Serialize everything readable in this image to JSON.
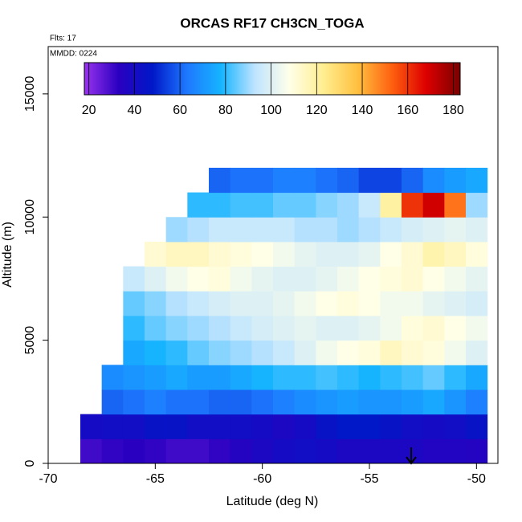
{
  "chart_data": {
    "type": "heatmap",
    "title": "ORCAS RF17 CH3CN_TOGA",
    "annotations": [
      "Flts: 17",
      "MMDD: 0224"
    ],
    "xlabel": "Latitude (deg N)",
    "ylabel": "Altitude (m)",
    "xlim": [
      -70,
      -49
    ],
    "ylim": [
      0,
      16920
    ],
    "xticks": [
      -70,
      -65,
      -60,
      -55,
      -50
    ],
    "yticks": [
      0,
      5000,
      10000,
      15000
    ],
    "clim": [
      18,
      183
    ],
    "cticks": [
      20,
      40,
      60,
      80,
      100,
      120,
      140,
      160,
      180
    ],
    "colormap": [
      "#9933ee",
      "#2a00c0",
      "#0018c8",
      "#1e78ff",
      "#16b4ff",
      "#c0e4ff",
      "#ffffe8",
      "#ffee90",
      "#ffc040",
      "#ff6010",
      "#dd0000",
      "#7a0000"
    ],
    "x": [
      -68,
      -67,
      -66,
      -65,
      -64,
      -63,
      -62,
      -61,
      -60,
      -59,
      -58,
      -57,
      -56,
      -55,
      -54,
      -53,
      -52,
      -51,
      -50
    ],
    "y": [
      500,
      1500,
      2500,
      3500,
      4500,
      5500,
      6500,
      7500,
      8500,
      9500,
      10500,
      11500
    ],
    "values": [
      [
        30,
        32,
        33,
        32,
        30,
        30,
        32,
        35,
        38,
        40,
        42,
        40,
        38,
        38,
        38,
        38,
        36,
        36,
        35
      ],
      [
        40,
        42,
        42,
        45,
        45,
        42,
        42,
        42,
        40,
        38,
        40,
        45,
        48,
        48,
        45,
        42,
        40,
        42,
        45
      ],
      [
        null,
        60,
        62,
        65,
        62,
        62,
        60,
        60,
        62,
        65,
        68,
        70,
        72,
        70,
        70,
        72,
        75,
        70,
        65
      ],
      [
        null,
        68,
        70,
        72,
        75,
        72,
        72,
        75,
        78,
        80,
        80,
        82,
        80,
        78,
        80,
        82,
        85,
        80,
        75
      ],
      [
        null,
        null,
        75,
        78,
        80,
        85,
        88,
        90,
        92,
        95,
        100,
        105,
        108,
        110,
        115,
        112,
        110,
        105,
        100
      ],
      [
        null,
        null,
        80,
        85,
        88,
        90,
        92,
        95,
        98,
        100,
        102,
        100,
        100,
        102,
        105,
        110,
        112,
        108,
        105
      ],
      [
        null,
        null,
        85,
        88,
        92,
        95,
        98,
        100,
        100,
        102,
        105,
        108,
        110,
        108,
        105,
        105,
        102,
        100,
        98
      ],
      [
        null,
        null,
        95,
        100,
        105,
        108,
        110,
        105,
        102,
        100,
        100,
        102,
        105,
        108,
        110,
        112,
        108,
        105,
        102
      ],
      [
        null,
        null,
        null,
        112,
        115,
        115,
        112,
        110,
        108,
        105,
        102,
        100,
        100,
        102,
        108,
        112,
        118,
        115,
        110
      ],
      [
        null,
        null,
        null,
        null,
        90,
        92,
        95,
        95,
        95,
        95,
        92,
        92,
        90,
        92,
        95,
        98,
        100,
        102,
        100
      ],
      [
        null,
        null,
        null,
        null,
        null,
        80,
        80,
        82,
        82,
        85,
        85,
        88,
        90,
        95,
        120,
        160,
        170,
        150,
        90
      ],
      [
        null,
        null,
        null,
        null,
        null,
        null,
        60,
        62,
        62,
        65,
        65,
        62,
        60,
        55,
        55,
        60,
        68,
        72,
        75
      ]
    ]
  }
}
